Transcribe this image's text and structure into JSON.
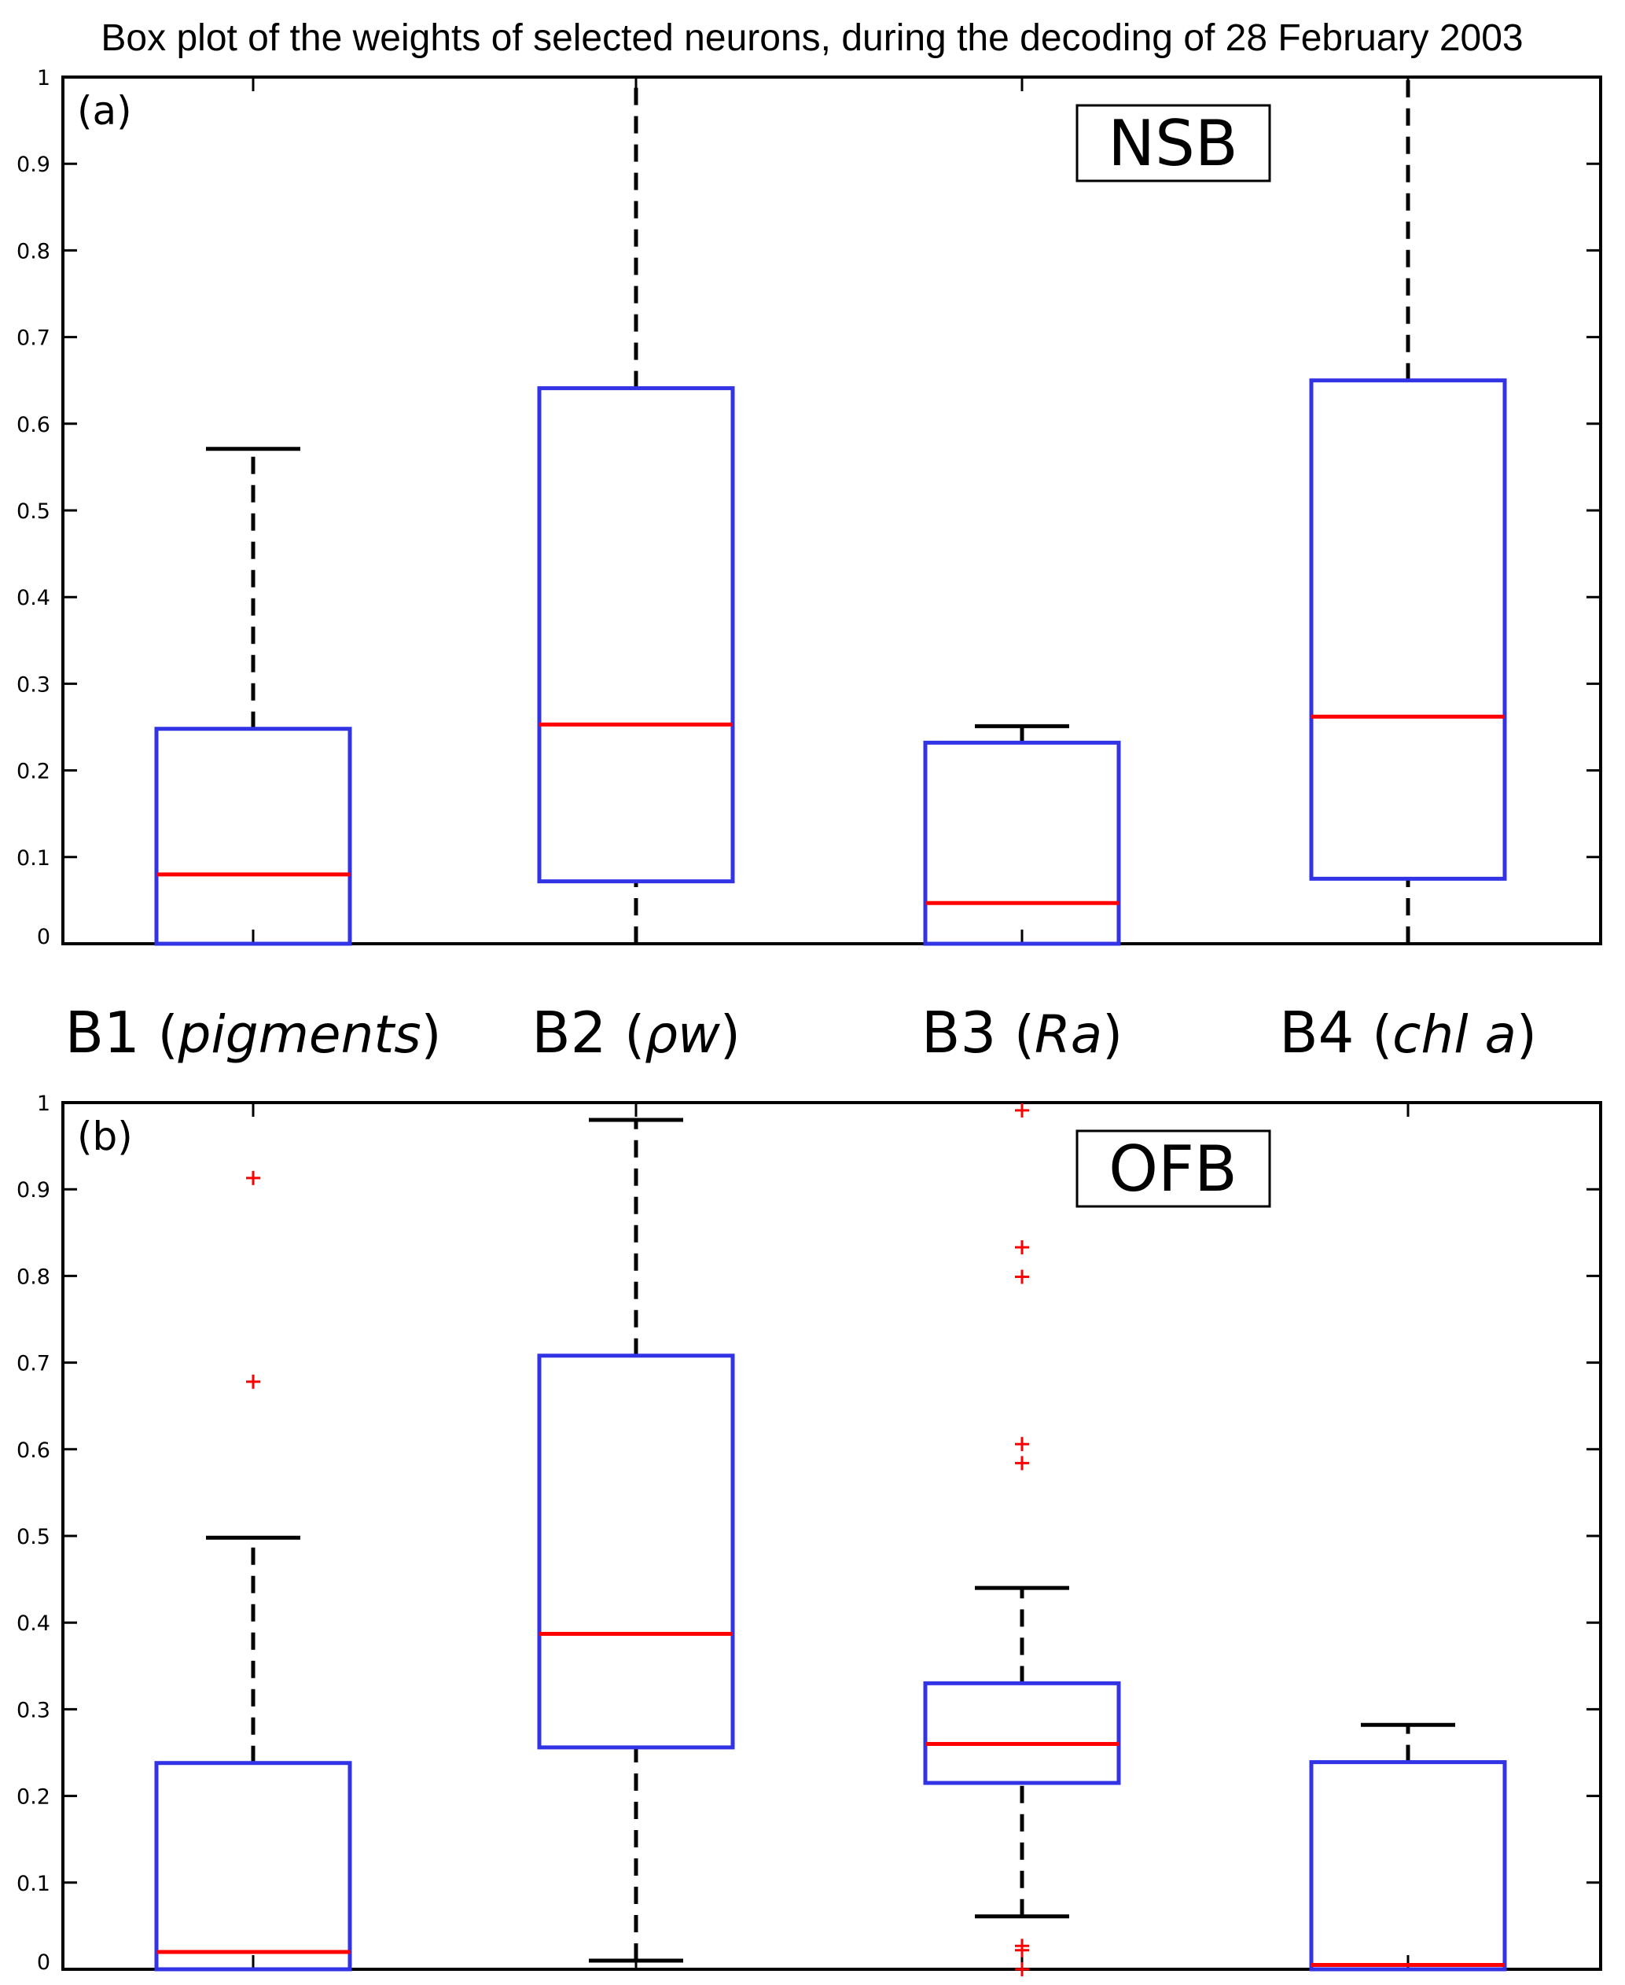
{
  "title": "Box plot of the weights of selected neurons, during the decoding of 28 February 2003",
  "category_labels": [
    {
      "main": "B1",
      "open": "(",
      "italic": "pigments",
      "close": ")"
    },
    {
      "main": "B2",
      "open": "(",
      "italic": "ρw",
      "close": ")"
    },
    {
      "main": "B3",
      "open": "(",
      "italic": "Ra",
      "close": ")"
    },
    {
      "main": "B4",
      "open": "(",
      "italic": "chl a",
      "close": ")"
    }
  ],
  "colors": {
    "box": "#3333e6",
    "median": "#ff0000",
    "whisker": "#000000",
    "outlier": "#ff0000",
    "axis": "#000000"
  },
  "chart_data": [
    {
      "type": "box",
      "panel_label": "(a)",
      "tag": "NSB",
      "ylim": [
        0,
        1
      ],
      "yticks": [
        "0",
        "0.1",
        "0.2",
        "0.3",
        "0.4",
        "0.5",
        "0.6",
        "0.7",
        "0.8",
        "0.9",
        "1"
      ],
      "categories": [
        "B1",
        "B2",
        "B3",
        "B4"
      ],
      "boxes": [
        {
          "whisker_low": 0.0,
          "q1": 0.0,
          "median": 0.08,
          "q3": 0.248,
          "whisker_high": 0.571,
          "outliers": []
        },
        {
          "whisker_low": 0.0,
          "q1": 0.072,
          "median": 0.253,
          "q3": 0.641,
          "whisker_high": 1.0,
          "outliers": []
        },
        {
          "whisker_low": 0.0,
          "q1": 0.0,
          "median": 0.047,
          "q3": 0.232,
          "whisker_high": 0.251,
          "outliers": []
        },
        {
          "whisker_low": 0.0,
          "q1": 0.075,
          "median": 0.262,
          "q3": 0.65,
          "whisker_high": 1.0,
          "outliers": []
        }
      ]
    },
    {
      "type": "box",
      "panel_label": "(b)",
      "tag": "OFB",
      "ylim": [
        0,
        1
      ],
      "yticks": [
        "0",
        "0.1",
        "0.2",
        "0.3",
        "0.4",
        "0.5",
        "0.6",
        "0.7",
        "0.8",
        "0.9",
        "1"
      ],
      "categories": [
        "B1",
        "B2",
        "B3",
        "B4"
      ],
      "boxes": [
        {
          "whisker_low": 0.0,
          "q1": 0.0,
          "median": 0.02,
          "q3": 0.238,
          "whisker_high": 0.498,
          "outliers": [
            0.678,
            0.913
          ]
        },
        {
          "whisker_low": 0.01,
          "q1": 0.256,
          "median": 0.387,
          "q3": 0.708,
          "whisker_high": 0.98,
          "outliers": []
        },
        {
          "whisker_low": 0.061,
          "q1": 0.215,
          "median": 0.26,
          "q3": 0.33,
          "whisker_high": 0.44,
          "outliers": [
            0.0,
            0.022,
            0.027,
            0.584,
            0.606,
            0.799,
            0.833,
            0.991
          ]
        },
        {
          "whisker_low": 0.0,
          "q1": 0.0,
          "median": 0.005,
          "q3": 0.239,
          "whisker_high": 0.282,
          "outliers": []
        }
      ]
    }
  ]
}
